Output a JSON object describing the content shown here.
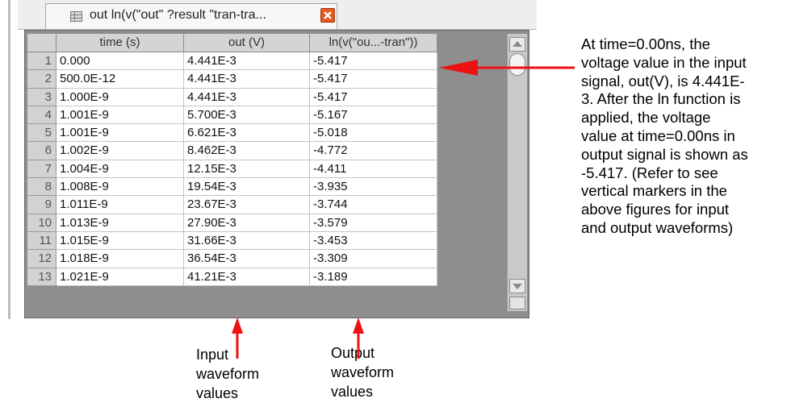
{
  "tab": {
    "label": "out ln(v(\"out\" ?result \"tran-tra...",
    "icon": "table-icon",
    "close_icon": "close-icon"
  },
  "table": {
    "headers": [
      "time (s)",
      "out (V)",
      "ln(v(\"ou...-tran\"))"
    ],
    "rows": [
      {
        "n": "1",
        "time": "0.000",
        "out": "4.441E-3",
        "ln": "-5.417"
      },
      {
        "n": "2",
        "time": "500.0E-12",
        "out": "4.441E-3",
        "ln": "-5.417"
      },
      {
        "n": "3",
        "time": "1.000E-9",
        "out": "4.441E-3",
        "ln": "-5.417"
      },
      {
        "n": "4",
        "time": "1.001E-9",
        "out": "5.700E-3",
        "ln": "-5.167"
      },
      {
        "n": "5",
        "time": "1.001E-9",
        "out": "6.621E-3",
        "ln": "-5.018"
      },
      {
        "n": "6",
        "time": "1.002E-9",
        "out": "8.462E-3",
        "ln": "-4.772"
      },
      {
        "n": "7",
        "time": "1.004E-9",
        "out": "12.15E-3",
        "ln": "-4.411"
      },
      {
        "n": "8",
        "time": "1.008E-9",
        "out": "19.54E-3",
        "ln": "-3.935"
      },
      {
        "n": "9",
        "time": "1.011E-9",
        "out": "23.67E-3",
        "ln": "-3.744"
      },
      {
        "n": "10",
        "time": "1.013E-9",
        "out": "27.90E-3",
        "ln": "-3.579"
      },
      {
        "n": "11",
        "time": "1.015E-9",
        "out": "31.66E-3",
        "ln": "-3.453"
      },
      {
        "n": "12",
        "time": "1.018E-9",
        "out": "36.54E-3",
        "ln": "-3.309"
      },
      {
        "n": "13",
        "time": "1.021E-9",
        "out": "41.21E-3",
        "ln": "-3.189"
      }
    ]
  },
  "annotation": {
    "lines": [
      "At time=0.00ns, the",
      "voltage value in the input",
      "signal, out(V), is 4.441E-",
      "3. After the ln function is",
      "applied, the voltage",
      "value at time=0.00ns in",
      "output signal is shown as",
      "-5.417. (Refer to see",
      "vertical markers in the",
      "above figures for input",
      "and output waveforms)"
    ]
  },
  "labels": {
    "input": [
      "Input",
      "waveform",
      "values"
    ],
    "output": [
      "Output",
      "waveform",
      "values"
    ]
  },
  "colors": {
    "arrow": "#ee1111",
    "close": "#e6581c"
  }
}
